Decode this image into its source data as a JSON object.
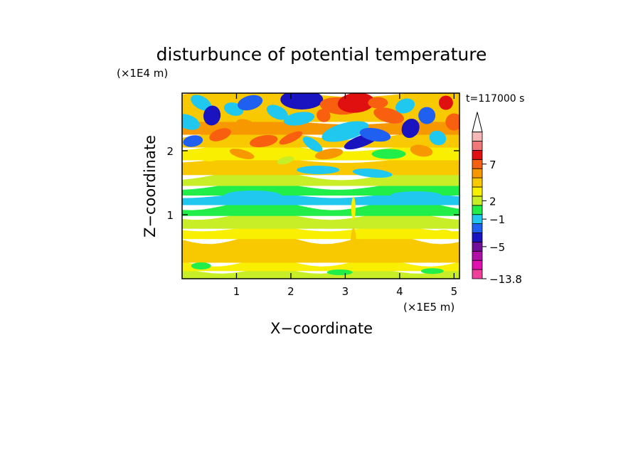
{
  "chart_data": {
    "type": "heatmap",
    "title": "disturbunce of potential temperature",
    "time_label": "t=117000 s",
    "xlabel": "X−coordinate",
    "ylabel": "Z−coordinate",
    "x_unit": "(×1E5 m)",
    "y_unit": "(×1E4 m)",
    "xlim": [
      0,
      5.1
    ],
    "ylim": [
      0,
      2.9
    ],
    "x_ticks": [
      {
        "value": 1,
        "label": "1"
      },
      {
        "value": 2,
        "label": "2"
      },
      {
        "value": 3,
        "label": "3"
      },
      {
        "value": 4,
        "label": "4"
      },
      {
        "value": 5,
        "label": "5"
      }
    ],
    "y_ticks": [
      {
        "value": 1,
        "label": "1"
      },
      {
        "value": 2,
        "label": "2"
      }
    ],
    "colorbar": {
      "extend": "max",
      "colors": [
        "#f0409c",
        "#e010b0",
        "#b010a8",
        "#70109a",
        "#1a14c0",
        "#2060f0",
        "#20c8f0",
        "#22ee4a",
        "#c8ee28",
        "#f8f000",
        "#f8c800",
        "#f89800",
        "#f86010",
        "#e01010",
        "#f07878",
        "#f8b8b8"
      ],
      "tick_labels": [
        {
          "level": 0,
          "label": "−13.8"
        },
        {
          "level": 3.5,
          "label": "−5"
        },
        {
          "level": 6.5,
          "label": "−1"
        },
        {
          "level": 8.5,
          "label": "2"
        },
        {
          "level": 12.5,
          "label": "7"
        }
      ]
    }
  }
}
